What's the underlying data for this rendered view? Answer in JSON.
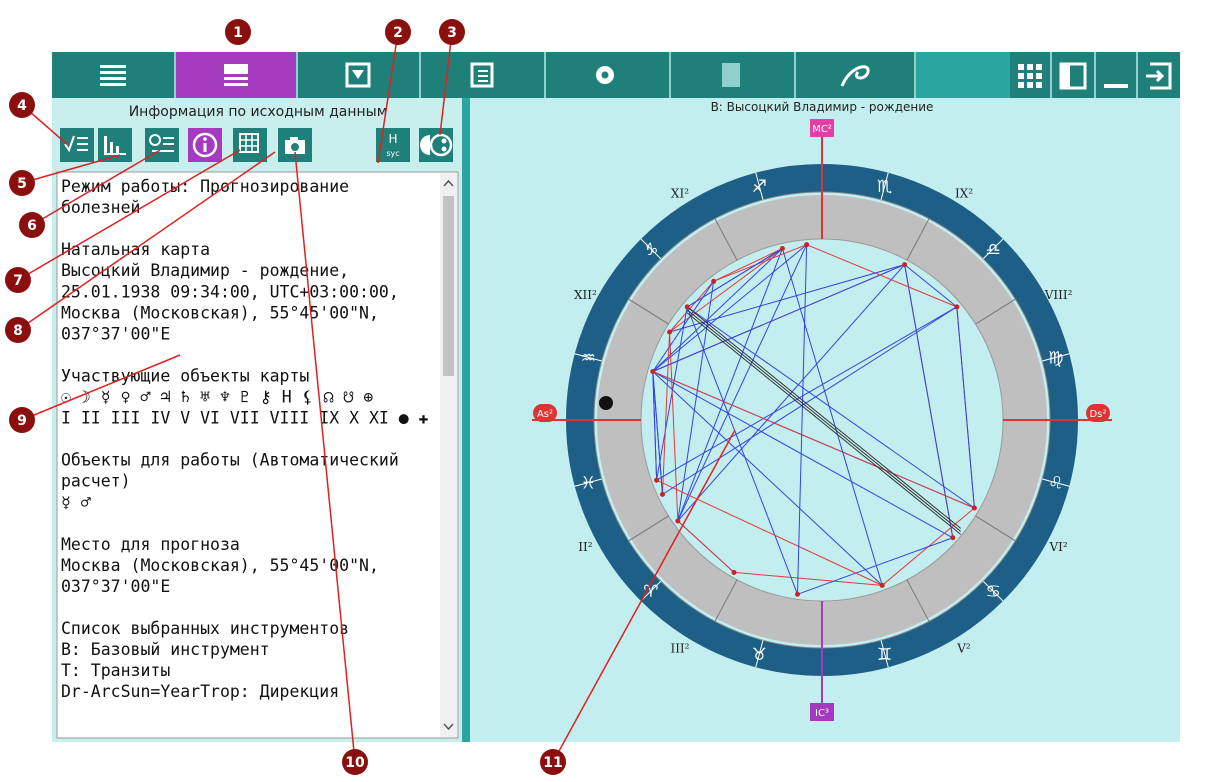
{
  "toolbar": {
    "active_tab": 2
  },
  "left_panel": {
    "title": "Информация по исходным данным",
    "button_h": "Н",
    "button_h_sub": "syc"
  },
  "text_panel": {
    "paragraphs": [
      [
        "Режим работы: Прогнозирование",
        "болезней"
      ],
      [
        "Натальная карта",
        "Высоцкий Владимир - рождение,",
        "25.01.1938 09:34:00, UTC+03:00:00,",
        "Москва (Московская), 55°45'00\"N,",
        "037°37'00\"E"
      ],
      [
        "Участвующие объекты карты",
        "☉ ☽ ☿ ♀ ♂ ♃ ♄ ♅ ♆ ♇ ⚷ H ⚸ ☊ ☋ ⊕",
        "I II III IV V VI VII VIII IX X XI ● ✚"
      ],
      [
        "Объекты для работы (Автоматический",
        "расчет)",
        "☿ ♂"
      ],
      [
        "Место для прогноза",
        "Москва (Московская), 55°45'00\"N,",
        "037°37'00\"E"
      ],
      [
        "Список выбранных инструментов",
        "B: Базовый инструмент",
        "T: Транзиты",
        "Dr-ArcSun=YearTrop: Дирекция"
      ]
    ]
  },
  "chart": {
    "title": "B: Высоцкий Владимир - рождение",
    "angles": {
      "mc": "MC²",
      "ic": "IC³",
      "as": "As²",
      "ds": "Ds²"
    },
    "houses": [
      "II²",
      "III²",
      "V²",
      "VI²",
      "VIII²",
      "IX²",
      "XI²",
      "XII²"
    ],
    "signs": [
      "♐",
      "♏",
      "♎",
      "♍",
      "♌",
      "♋",
      "♊",
      "♉",
      "♈",
      "♓",
      "♒",
      "♑"
    ]
  },
  "callouts": [
    "1",
    "2",
    "3",
    "4",
    "5",
    "6",
    "7",
    "8",
    "9",
    "10",
    "11"
  ]
}
